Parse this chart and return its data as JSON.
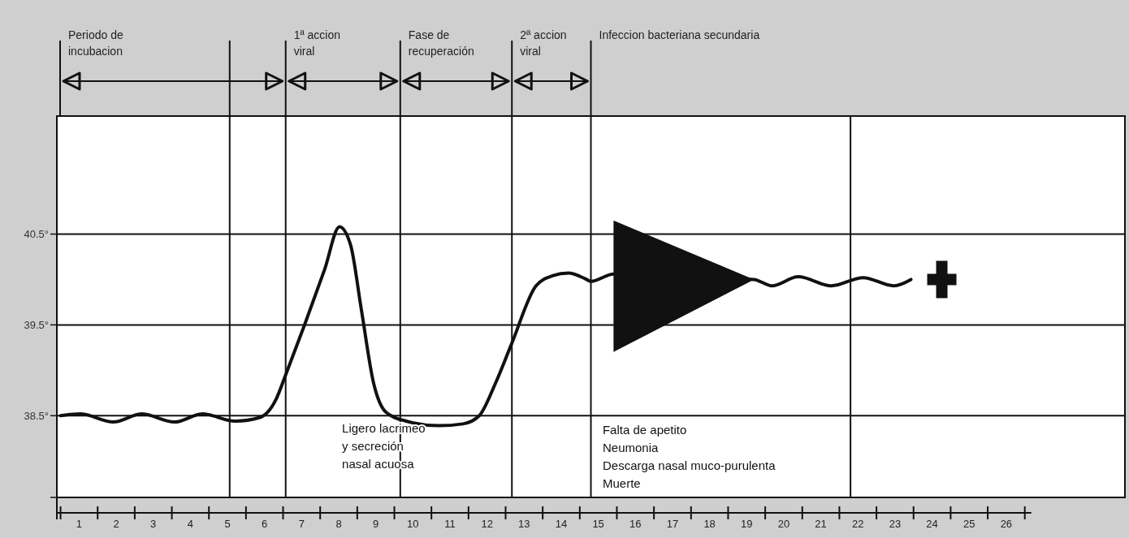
{
  "chart_data": {
    "type": "line",
    "x": [
      0.5,
      1.04,
      1.92,
      2.69,
      3.57,
      4.33,
      5.21,
      5.87,
      6.31,
      6.57,
      7.07,
      7.62,
      8.02,
      8.32,
      8.61,
      8.94,
      9.27,
      9.82,
      10.69,
      11.35,
      11.79,
      12.23,
      12.67,
      13.32,
      13.76,
      14.2,
      14.64,
      14.8,
      15.41,
      19.2,
      19.68,
      20.39,
      21.28,
      22.14,
      22.97,
      23.43
    ],
    "series": [
      {
        "color": "#111111",
        "values": [
          38.5,
          38.52,
          38.43,
          38.52,
          38.43,
          38.52,
          38.44,
          38.48,
          38.68,
          38.95,
          39.49,
          40.11,
          40.58,
          40.38,
          39.67,
          38.86,
          38.54,
          38.44,
          38.39,
          38.41,
          38.5,
          38.86,
          39.3,
          39.93,
          40.04,
          40.07,
          40.01,
          39.98,
          40.06,
          40.0,
          39.93,
          40.03,
          39.93,
          40.02,
          39.93,
          40.0
        ]
      }
    ],
    "xlim": [
      0.4,
      29.2
    ],
    "xticks": [
      {
        "value": 0.5,
        "label": null
      },
      1,
      {
        "value": 1.5,
        "label": null
      },
      2,
      {
        "value": 2.5,
        "label": null
      },
      3,
      {
        "value": 3.5,
        "label": null
      },
      4,
      {
        "value": 4.5,
        "label": null
      },
      5,
      {
        "value": 5.5,
        "label": null
      },
      6,
      {
        "value": 6.5,
        "label": null
      },
      7,
      {
        "value": 7.5,
        "label": null
      },
      8,
      {
        "value": 8.5,
        "label": null
      },
      9,
      {
        "value": 9.5,
        "label": null
      },
      10,
      {
        "value": 10.5,
        "label": null
      },
      11,
      {
        "value": 11.5,
        "label": null
      },
      12,
      {
        "value": 12.5,
        "label": null
      },
      13,
      {
        "value": 13.5,
        "label": null
      },
      14,
      {
        "value": 14.5,
        "label": null
      },
      15,
      {
        "value": 15.5,
        "label": null
      },
      16,
      {
        "value": 16.5,
        "label": null
      },
      17,
      {
        "value": 17.5,
        "label": null
      },
      18,
      {
        "value": 18.5,
        "label": null
      },
      19,
      {
        "value": 19.5,
        "label": null
      },
      20,
      {
        "value": 20.5,
        "label": null
      },
      21,
      {
        "value": 21.5,
        "label": null
      },
      22,
      {
        "value": 22.5,
        "label": null
      },
      23,
      {
        "value": 23.5,
        "label": null
      },
      24,
      {
        "value": 24.5,
        "label": null
      },
      25,
      {
        "value": 25.5,
        "label": null
      },
      26,
      {
        "value": 26.5,
        "label": null
      }
    ],
    "ylim": [
      37.6,
      41.8
    ],
    "yticks": [
      {
        "value": 37.6,
        "label": null
      },
      {
        "value": 38.5,
        "label": "38.5°"
      },
      {
        "value": 39.5,
        "label": "39.5°"
      },
      {
        "value": 40.5,
        "label": "40.5°"
      }
    ],
    "grid": "y",
    "marker": "none",
    "line_style": "solid",
    "ref_lines": [
      {
        "axis": "x",
        "value": 5.06
      },
      {
        "axis": "x",
        "value": 6.57
      },
      {
        "axis": "x",
        "value": 9.66
      },
      {
        "axis": "x",
        "value": 12.67
      },
      {
        "axis": "x",
        "value": 14.8
      },
      {
        "axis": "x",
        "value": 21.8
      }
    ],
    "annotations": [
      "Periodo de incubacion",
      "1ª accion viral",
      "Fase de recuperación",
      "2ª accion viral",
      "Infeccion bacteriana secundaria",
      "Ligero lacrimeo\ny secreción\nnasal acuosa",
      "Falta de apetito\nNeumonia\nDescarga nasal muco-purulenta\nMuerte"
    ]
  }
}
